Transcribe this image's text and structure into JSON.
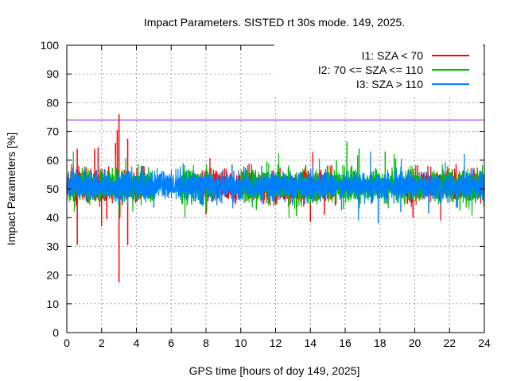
{
  "chart_data": {
    "type": "line",
    "title": "Impact Parameters. SISTED rt 30s mode. 149, 2025.",
    "xlabel": "GPS time [hours of doy 149, 2025]",
    "ylabel": "Impact Parameters [%]",
    "xlim": [
      0,
      24
    ],
    "ylim": [
      0,
      100
    ],
    "xticks": [
      "0",
      "2",
      "4",
      "6",
      "8",
      "10",
      "12",
      "14",
      "16",
      "18",
      "20",
      "22",
      "24"
    ],
    "yticks": [
      "0",
      "10",
      "20",
      "30",
      "40",
      "50",
      "60",
      "70",
      "80",
      "90",
      "100"
    ],
    "grid": true,
    "legend_position": "top-right",
    "reference_line": {
      "y": 74,
      "color": "#a020f0"
    },
    "series": [
      {
        "name": "I1: SZA < 70",
        "color": "#ff0000",
        "center": 51,
        "spread": 5,
        "segments": [
          [
            0,
            4.5
          ],
          [
            7.5,
            15.5
          ],
          [
            19.5,
            24
          ]
        ],
        "spikes": [
          [
            0.6,
            30.5
          ],
          [
            0.6,
            64
          ],
          [
            1.6,
            64
          ],
          [
            1.8,
            64.5
          ],
          [
            2.0,
            37
          ],
          [
            2.3,
            39.5
          ],
          [
            2.8,
            66
          ],
          [
            2.9,
            70.5
          ],
          [
            3.0,
            76
          ],
          [
            3.0,
            17.5
          ],
          [
            3.05,
            40
          ],
          [
            3.5,
            30.5
          ],
          [
            3.5,
            67.5
          ],
          [
            8.0,
            41
          ],
          [
            13.7,
            57.5
          ],
          [
            14.0,
            38.5
          ],
          [
            14.8,
            41
          ],
          [
            19.9,
            40
          ]
        ]
      },
      {
        "name": "I2: 70 <= SZA <= 110",
        "color": "#00c000",
        "center": 51,
        "spread": 5,
        "segments": [
          [
            0,
            5
          ],
          [
            6.5,
            8.5
          ],
          [
            10,
            20.5
          ],
          [
            21,
            24
          ]
        ],
        "spikes": [
          [
            3.0,
            40.5
          ],
          [
            11.5,
            59.5
          ],
          [
            13.2,
            40.5
          ],
          [
            15.5,
            60
          ],
          [
            15.9,
            43
          ],
          [
            16.1,
            66.5
          ],
          [
            16.8,
            64
          ],
          [
            18.3,
            63
          ],
          [
            18.9,
            60.5
          ],
          [
            22.6,
            42.5
          ],
          [
            23.6,
            57.5
          ]
        ]
      },
      {
        "name": "I3: SZA > 110",
        "color": "#0080ff",
        "center": 51,
        "spread": 4.5,
        "segments": [
          [
            0,
            24
          ]
        ],
        "spikes": [
          [
            3.5,
            44
          ],
          [
            5.0,
            43.5
          ],
          [
            7.8,
            44
          ],
          [
            9.5,
            58.5
          ],
          [
            11.2,
            58
          ],
          [
            17.9,
            38
          ],
          [
            19.2,
            42
          ],
          [
            20.8,
            41.5
          ],
          [
            21.5,
            44.5
          ],
          [
            22.4,
            43.5
          ]
        ]
      }
    ]
  }
}
